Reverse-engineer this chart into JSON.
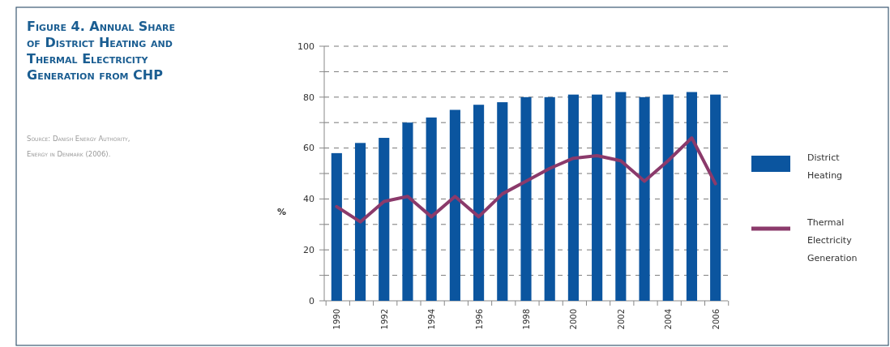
{
  "chart_data": {
    "type": "bar",
    "title": "Figure 4. Annual Share of District Heating and Thermal Electricity Generation from CHP",
    "annotations": [
      "Source: Danish Energy Authority, Energy in Denmark (2006)."
    ],
    "ylabel": "%",
    "categories": [
      "1990",
      null,
      "1992",
      null,
      "1994",
      null,
      "1996",
      null,
      "1998",
      null,
      "2000",
      null,
      "2002",
      null,
      "2004",
      null,
      "2006"
    ],
    "series": [
      {
        "name": "District Heating",
        "color": "#0b559f",
        "values": [
          58,
          62,
          64,
          70,
          72,
          75,
          77,
          78,
          80,
          80,
          81,
          81,
          82,
          80,
          81,
          82,
          81
        ]
      },
      {
        "name": "Thermal Electricity Generation",
        "type": "line",
        "color": "#8b3a6b",
        "values": [
          37,
          31,
          39,
          41,
          33,
          41,
          33,
          42,
          47,
          52,
          56,
          57,
          55,
          47,
          55,
          64,
          46
        ]
      }
    ],
    "ylim": [
      0,
      100
    ],
    "yticks": [
      0,
      {
        "value": 10,
        "label": null
      },
      20,
      {
        "value": 30,
        "label": null
      },
      40,
      {
        "value": 50,
        "label": null
      },
      60,
      {
        "value": 70,
        "label": null
      },
      80,
      {
        "value": 90,
        "label": null
      },
      100
    ],
    "grid": "y",
    "legend": "right",
    "line_style": "solid"
  }
}
